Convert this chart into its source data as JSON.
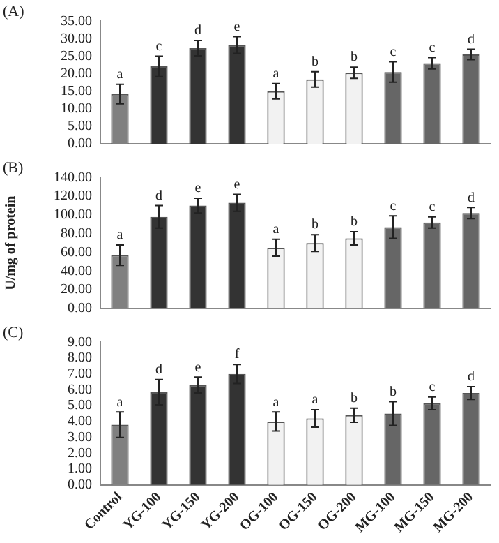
{
  "chart_data": [
    {
      "type": "bar",
      "title": "(A)",
      "tick_labels": "y",
      "categories": [
        "Control",
        "YG-100",
        "YG-150",
        "YG-200",
        "OG-100",
        "OG-150",
        "OG-200",
        "MG-100",
        "MG-150",
        "MG-200"
      ],
      "values": [
        14.2,
        22.1,
        27.3,
        28.2,
        15.0,
        18.4,
        20.3,
        20.5,
        23.0,
        25.5
      ],
      "errors": [
        2.8,
        2.9,
        2.2,
        2.4,
        2.2,
        2.2,
        1.6,
        2.9,
        1.6,
        1.5
      ],
      "colors": [
        "#808080",
        "#333333",
        "#333333",
        "#333333",
        "#f2f2f2",
        "#f2f2f2",
        "#f2f2f2",
        "#666666",
        "#666666",
        "#666666"
      ],
      "ylim": [
        0,
        35
      ],
      "yticks": [
        {
          "value": 0,
          "label": "0.00"
        },
        {
          "value": 5,
          "label": "5.00"
        },
        {
          "value": 10,
          "label": "10.00"
        },
        {
          "value": 15,
          "label": "15.00"
        },
        {
          "value": 20,
          "label": "20.00"
        },
        {
          "value": 25,
          "label": "25.00"
        },
        {
          "value": 30,
          "label": "30.00"
        },
        {
          "value": 35,
          "label": "35.00"
        }
      ],
      "annotations": [
        {
          "text": "a",
          "x": "Control",
          "y": 17.0
        },
        {
          "text": "c",
          "x": "YG-100",
          "y": 25.0
        },
        {
          "text": "d",
          "x": "YG-150",
          "y": 29.5
        },
        {
          "text": "e",
          "x": "YG-200",
          "y": 30.6
        },
        {
          "text": "a",
          "x": "OG-100",
          "y": 17.2
        },
        {
          "text": "b",
          "x": "OG-150",
          "y": 20.6
        },
        {
          "text": "b",
          "x": "OG-200",
          "y": 21.9
        },
        {
          "text": "c",
          "x": "MG-100",
          "y": 23.4
        },
        {
          "text": "c",
          "x": "MG-150",
          "y": 24.6
        },
        {
          "text": "d",
          "x": "MG-200",
          "y": 27.0
        }
      ]
    },
    {
      "type": "bar",
      "title": "(B)",
      "ylabel": "U/mg of protein",
      "tick_labels": "y",
      "categories": [
        "Control",
        "YG-100",
        "YG-150",
        "YG-200",
        "OG-100",
        "OG-150",
        "OG-200",
        "MG-100",
        "MG-150",
        "MG-200"
      ],
      "values": [
        57,
        98,
        110,
        113,
        65,
        70,
        75,
        87,
        92,
        102
      ],
      "errors": [
        11,
        12,
        8,
        9,
        9,
        9,
        7,
        12,
        6,
        6
      ],
      "colors": [
        "#808080",
        "#333333",
        "#333333",
        "#333333",
        "#f2f2f2",
        "#f2f2f2",
        "#f2f2f2",
        "#666666",
        "#666666",
        "#666666"
      ],
      "ylim": [
        0,
        140
      ],
      "yticks": [
        {
          "value": 0,
          "label": "0.00"
        },
        {
          "value": 20,
          "label": "20.00"
        },
        {
          "value": 40,
          "label": "40.00"
        },
        {
          "value": 60,
          "label": "60.00"
        },
        {
          "value": 80,
          "label": "80.00"
        },
        {
          "value": 100,
          "label": "100.00"
        },
        {
          "value": 120,
          "label": "120.00"
        },
        {
          "value": 140,
          "label": "140.00"
        }
      ],
      "annotations": [
        {
          "text": "a",
          "x": "Control",
          "y": 68
        },
        {
          "text": "d",
          "x": "YG-100",
          "y": 110
        },
        {
          "text": "e",
          "x": "YG-150",
          "y": 118
        },
        {
          "text": "e",
          "x": "YG-200",
          "y": 122
        },
        {
          "text": "a",
          "x": "OG-100",
          "y": 74
        },
        {
          "text": "b",
          "x": "OG-150",
          "y": 79
        },
        {
          "text": "b",
          "x": "OG-200",
          "y": 82
        },
        {
          "text": "c",
          "x": "MG-100",
          "y": 99
        },
        {
          "text": "c",
          "x": "MG-150",
          "y": 98
        },
        {
          "text": "d",
          "x": "MG-200",
          "y": 108
        }
      ]
    },
    {
      "type": "bar",
      "title": "(C)",
      "categories": [
        "Control",
        "YG-100",
        "YG-150",
        "YG-200",
        "OG-100",
        "OG-150",
        "OG-200",
        "MG-100",
        "MG-150",
        "MG-200"
      ],
      "values": [
        3.8,
        5.85,
        6.3,
        7.0,
        4.0,
        4.2,
        4.4,
        4.5,
        5.15,
        5.8
      ],
      "errors": [
        0.8,
        0.8,
        0.5,
        0.6,
        0.6,
        0.55,
        0.45,
        0.75,
        0.4,
        0.4
      ],
      "colors": [
        "#808080",
        "#333333",
        "#333333",
        "#333333",
        "#f2f2f2",
        "#f2f2f2",
        "#f2f2f2",
        "#666666",
        "#666666",
        "#666666"
      ],
      "ylim": [
        0,
        9
      ],
      "yticks": [
        {
          "value": 0,
          "label": "0.00"
        },
        {
          "value": 1,
          "label": "1.00"
        },
        {
          "value": 2,
          "label": "2.00"
        },
        {
          "value": 3,
          "label": "3.00"
        },
        {
          "value": 4,
          "label": "4.00"
        },
        {
          "value": 5,
          "label": "5.00"
        },
        {
          "value": 6,
          "label": "6.00"
        },
        {
          "value": 7,
          "label": "7.00"
        },
        {
          "value": 8,
          "label": "8.00"
        },
        {
          "value": 9,
          "label": "9.00"
        }
      ],
      "annotations": [
        {
          "text": "a",
          "x": "Control",
          "y": 4.6
        },
        {
          "text": "d",
          "x": "YG-100",
          "y": 6.65
        },
        {
          "text": "e",
          "x": "YG-150",
          "y": 6.8
        },
        {
          "text": "f",
          "x": "YG-200",
          "y": 7.6
        },
        {
          "text": "a",
          "x": "OG-100",
          "y": 4.6
        },
        {
          "text": "a",
          "x": "OG-150",
          "y": 4.75
        },
        {
          "text": "b",
          "x": "OG-200",
          "y": 4.85
        },
        {
          "text": "b",
          "x": "MG-100",
          "y": 5.25
        },
        {
          "text": "c",
          "x": "MG-150",
          "y": 5.55
        },
        {
          "text": "d",
          "x": "MG-200",
          "y": 6.2
        }
      ]
    }
  ]
}
